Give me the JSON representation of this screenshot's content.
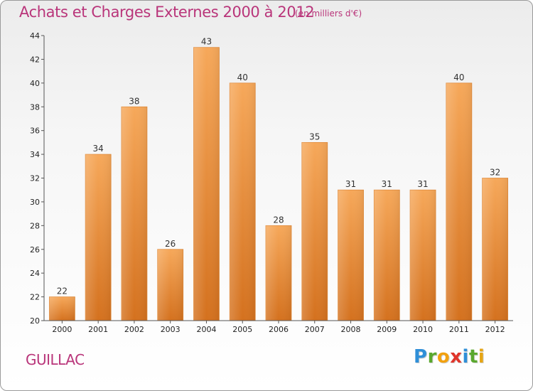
{
  "header": {
    "title": "Achats et Charges Externes 2000 à 2012",
    "subtitle": "(en milliers d'€)"
  },
  "footer": {
    "commune": "GUILLAC",
    "logo_letters": [
      "P",
      "r",
      "o",
      "x",
      "i",
      "t",
      "i"
    ],
    "logo_colors": [
      "#2f8fd8",
      "#5aa82e",
      "#f2a10f",
      "#e0352b",
      "#2f8fd8",
      "#5aa82e",
      "#e6a514"
    ]
  },
  "chart_data": {
    "type": "bar",
    "title": "Achats et Charges Externes 2000 à 2012",
    "subtitle": "(en milliers d'€)",
    "categories": [
      "2000",
      "2001",
      "2002",
      "2003",
      "2004",
      "2005",
      "2006",
      "2007",
      "2008",
      "2009",
      "2010",
      "2011",
      "2012"
    ],
    "values": [
      22,
      34,
      38,
      26,
      43,
      40,
      28,
      35,
      31,
      31,
      31,
      40,
      32
    ],
    "ylim": [
      20,
      44
    ],
    "yticks": [
      20,
      22,
      24,
      26,
      28,
      30,
      32,
      34,
      36,
      38,
      40,
      42,
      44
    ],
    "grid": false,
    "bar_color": "#f08a2a",
    "xlabel": "",
    "ylabel": ""
  }
}
